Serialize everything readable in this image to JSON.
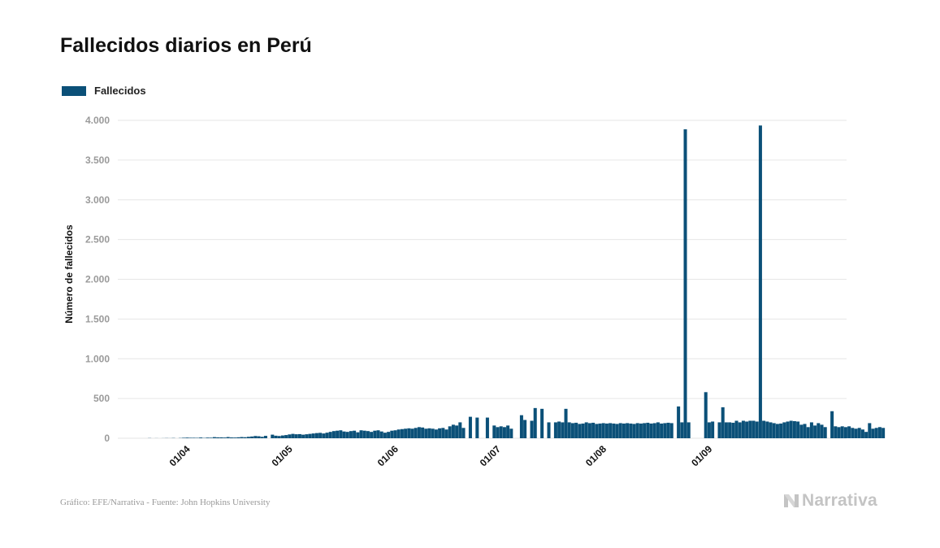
{
  "colors": {
    "bar": "#0b5078",
    "grid": "#e6e6e6",
    "tick_text": "#9a9a9a",
    "axis_title": "#111111"
  },
  "source": "Gráfico: EFE/Narrativa - Fuente: John Hopkins University",
  "brand": {
    "name": "Narrativa",
    "icon": "narrativa-logo-icon"
  },
  "chart_data": {
    "type": "bar",
    "title": "Fallecidos diarios en Perú",
    "xlabel": "",
    "ylabel": "Número de fallecidos",
    "ylim": [
      0,
      4000
    ],
    "yticks": [
      0,
      500,
      1000,
      1500,
      2000,
      2500,
      3000,
      3500,
      4000
    ],
    "ytick_labels": [
      "0",
      "500",
      "1.000",
      "1.500",
      "2.000",
      "2.500",
      "3.000",
      "3.500",
      "4.000"
    ],
    "grid": true,
    "legend": "top-left",
    "x_start": "2020-03-19",
    "x_ticks": [
      {
        "date": "2020-04-01",
        "label": "01/04"
      },
      {
        "date": "2020-05-01",
        "label": "01/05"
      },
      {
        "date": "2020-06-01",
        "label": "01/06"
      },
      {
        "date": "2020-07-01",
        "label": "01/07"
      },
      {
        "date": "2020-08-01",
        "label": "01/08"
      },
      {
        "date": "2020-09-01",
        "label": "01/09"
      }
    ],
    "series": [
      {
        "name": "Fallecidos",
        "values": [
          0,
          2,
          0,
          1,
          0,
          1,
          2,
          1,
          3,
          0,
          3,
          6,
          8,
          6,
          6,
          5,
          9,
          4,
          8,
          7,
          14,
          11,
          11,
          9,
          15,
          10,
          9,
          12,
          15,
          13,
          18,
          22,
          28,
          25,
          18,
          30,
          0,
          45,
          32,
          28,
          35,
          40,
          48,
          55,
          50,
          52,
          45,
          50,
          55,
          60,
          65,
          68,
          60,
          70,
          80,
          90,
          95,
          100,
          85,
          80,
          90,
          95,
          75,
          100,
          95,
          90,
          80,
          95,
          100,
          85,
          70,
          80,
          95,
          100,
          110,
          115,
          120,
          125,
          120,
          130,
          140,
          135,
          120,
          125,
          120,
          110,
          125,
          130,
          110,
          150,
          170,
          160,
          200,
          130,
          0,
          270,
          0,
          260,
          0,
          0,
          260,
          0,
          160,
          140,
          150,
          140,
          160,
          120,
          0,
          0,
          290,
          230,
          0,
          220,
          380,
          0,
          370,
          0,
          200,
          0,
          200,
          210,
          200,
          370,
          200,
          190,
          195,
          180,
          185,
          200,
          190,
          195,
          180,
          185,
          190,
          185,
          190,
          185,
          180,
          190,
          185,
          190,
          185,
          180,
          190,
          185,
          190,
          195,
          185,
          190,
          200,
          185,
          190,
          195,
          190,
          0,
          400,
          200,
          3887,
          200,
          0,
          0,
          0,
          0,
          580,
          200,
          210,
          0,
          200,
          390,
          200,
          200,
          195,
          220,
          200,
          220,
          210,
          220,
          220,
          210,
          3935,
          220,
          210,
          200,
          190,
          180,
          185,
          200,
          210,
          220,
          215,
          210,
          170,
          180,
          140,
          200,
          160,
          190,
          170,
          140,
          0,
          340,
          150,
          140,
          150,
          140,
          150,
          130,
          120,
          130,
          110,
          80,
          190,
          120,
          130,
          140,
          130
        ]
      }
    ]
  }
}
